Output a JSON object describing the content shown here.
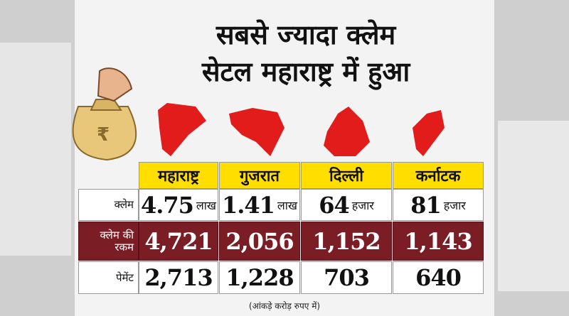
{
  "header": {
    "title": [
      "सबसे ज्यादा क्लेम",
      "सेटल महाराष्ट्र में हुआ"
    ]
  },
  "table": {
    "columns": [
      "महाराष्ट्र",
      "गुजरात",
      "दिल्ली",
      "कर्नाटक"
    ],
    "rows": [
      {
        "label": "क्लेम",
        "cells": [
          {
            "value": "4.75",
            "unit": "लाख"
          },
          {
            "value": "1.41",
            "unit": "लाख"
          },
          {
            "value": "64",
            "unit": "हजार"
          },
          {
            "value": "81",
            "unit": "हजार"
          }
        ]
      },
      {
        "label": "क्लेम की रकम",
        "cells": [
          "4,721",
          "2,056",
          "1,152",
          "1,143"
        ]
      },
      {
        "label": "पेमेंट",
        "cells": [
          "2,713",
          "1,228",
          "703",
          "640"
        ]
      }
    ]
  },
  "note": "(आंकड़े करोड़ रुपए में)"
}
